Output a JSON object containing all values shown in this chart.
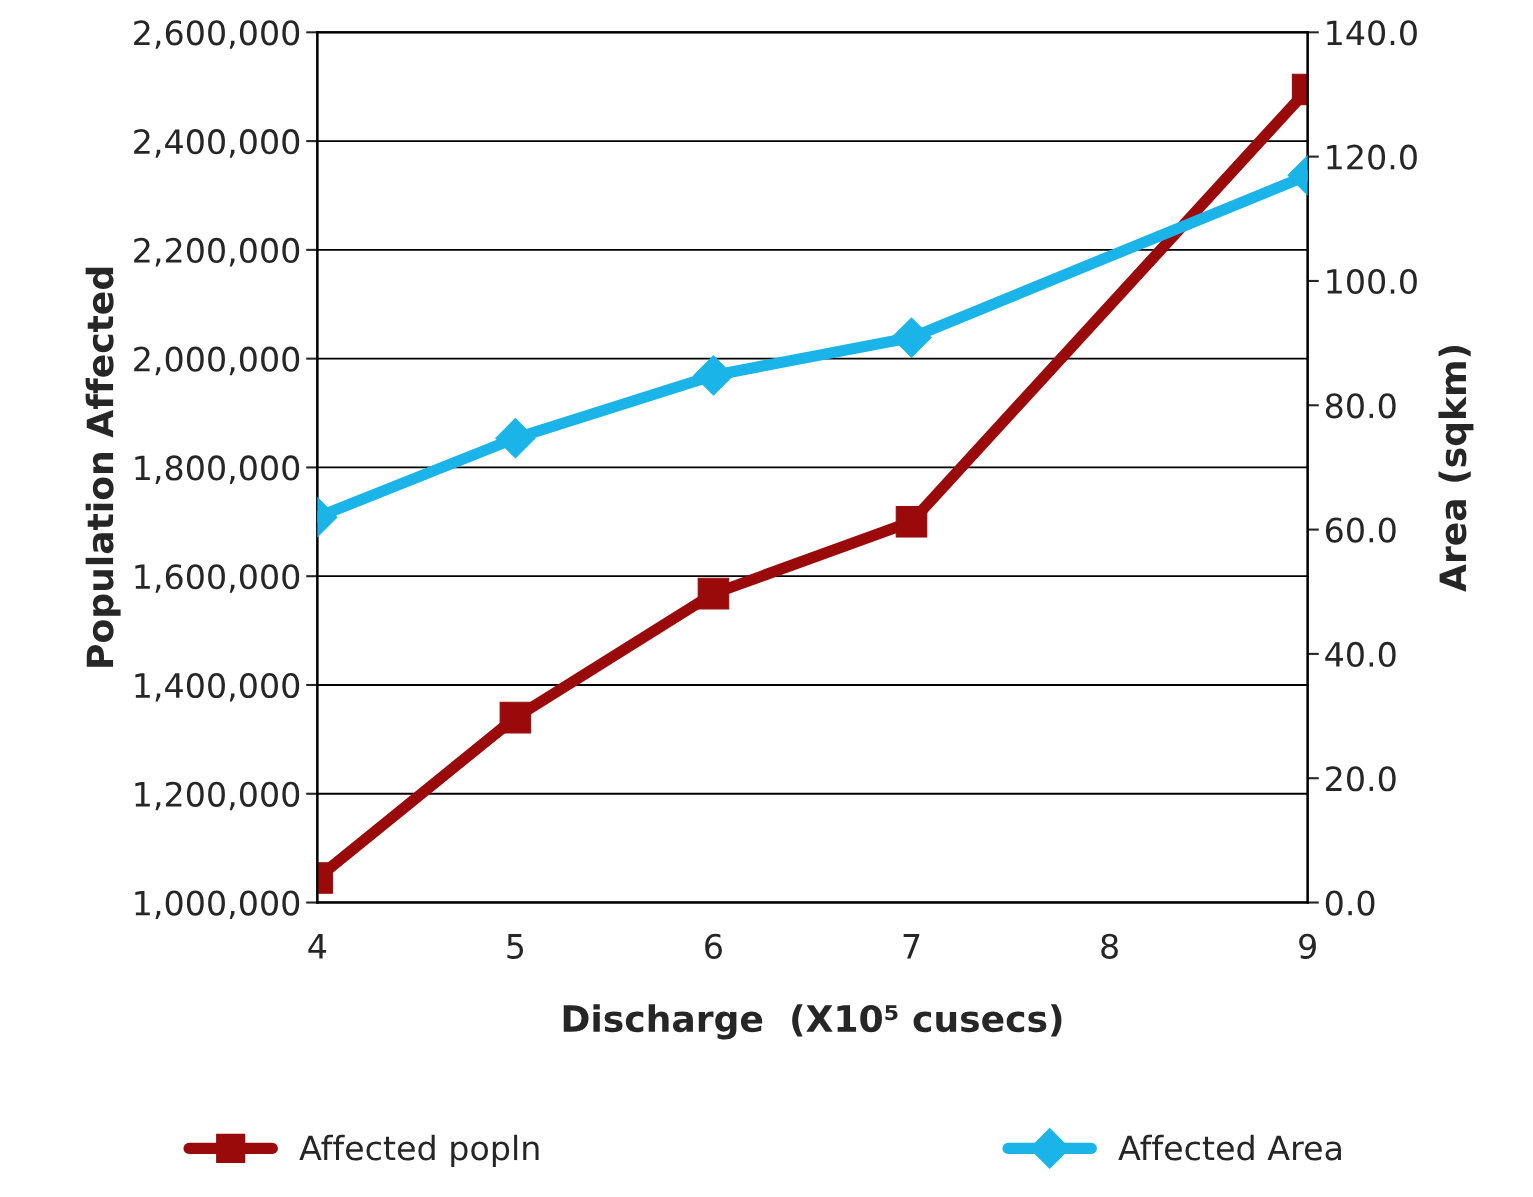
{
  "chart_data": {
    "type": "line",
    "xlabel": "Discharge  (X10⁵ cusecs)",
    "ylabel": "Population Affected",
    "y2label": "Area (sqkm)",
    "xlim": [
      4,
      9
    ],
    "xticks": [
      4,
      5,
      6,
      7,
      8,
      9
    ],
    "ylim": [
      1000000,
      2600000
    ],
    "yticks": [
      {
        "value": 1000000,
        "label": "1,000,000"
      },
      {
        "value": 1200000,
        "label": "1,200,000"
      },
      {
        "value": 1400000,
        "label": "1,400,000"
      },
      {
        "value": 1600000,
        "label": "1,600,000"
      },
      {
        "value": 1800000,
        "label": "1,800,000"
      },
      {
        "value": 2000000,
        "label": "2,000,000"
      },
      {
        "value": 2200000,
        "label": "2,200,000"
      },
      {
        "value": 2400000,
        "label": "2,400,000"
      },
      {
        "value": 2600000,
        "label": "2,600,000"
      }
    ],
    "y2lim": [
      0,
      140
    ],
    "y2ticks": [
      {
        "value": 0,
        "label": "0.0"
      },
      {
        "value": 20,
        "label": "20.0"
      },
      {
        "value": 40,
        "label": "40.0"
      },
      {
        "value": 60,
        "label": "60.0"
      },
      {
        "value": 80,
        "label": "80.0"
      },
      {
        "value": 100,
        "label": "100.0"
      },
      {
        "value": 120,
        "label": "120.0"
      },
      {
        "value": 140,
        "label": "140.0"
      }
    ],
    "grid": "y",
    "legend": "bottom",
    "series": [
      {
        "name": "Affected popln",
        "color": "#9b0a0a",
        "marker": "square",
        "x": [
          4,
          5,
          6,
          7,
          9
        ],
        "values": [
          1045000,
          1340000,
          1568000,
          1700000,
          2495000
        ]
      },
      {
        "name": "Affected Area",
        "color": "#1ab4e8",
        "marker": "diamond",
        "axis": "y2",
        "x": [
          4,
          5,
          6,
          7,
          9
        ],
        "values": [
          62.0,
          74.7,
          84.8,
          90.9,
          117.0
        ]
      }
    ]
  }
}
